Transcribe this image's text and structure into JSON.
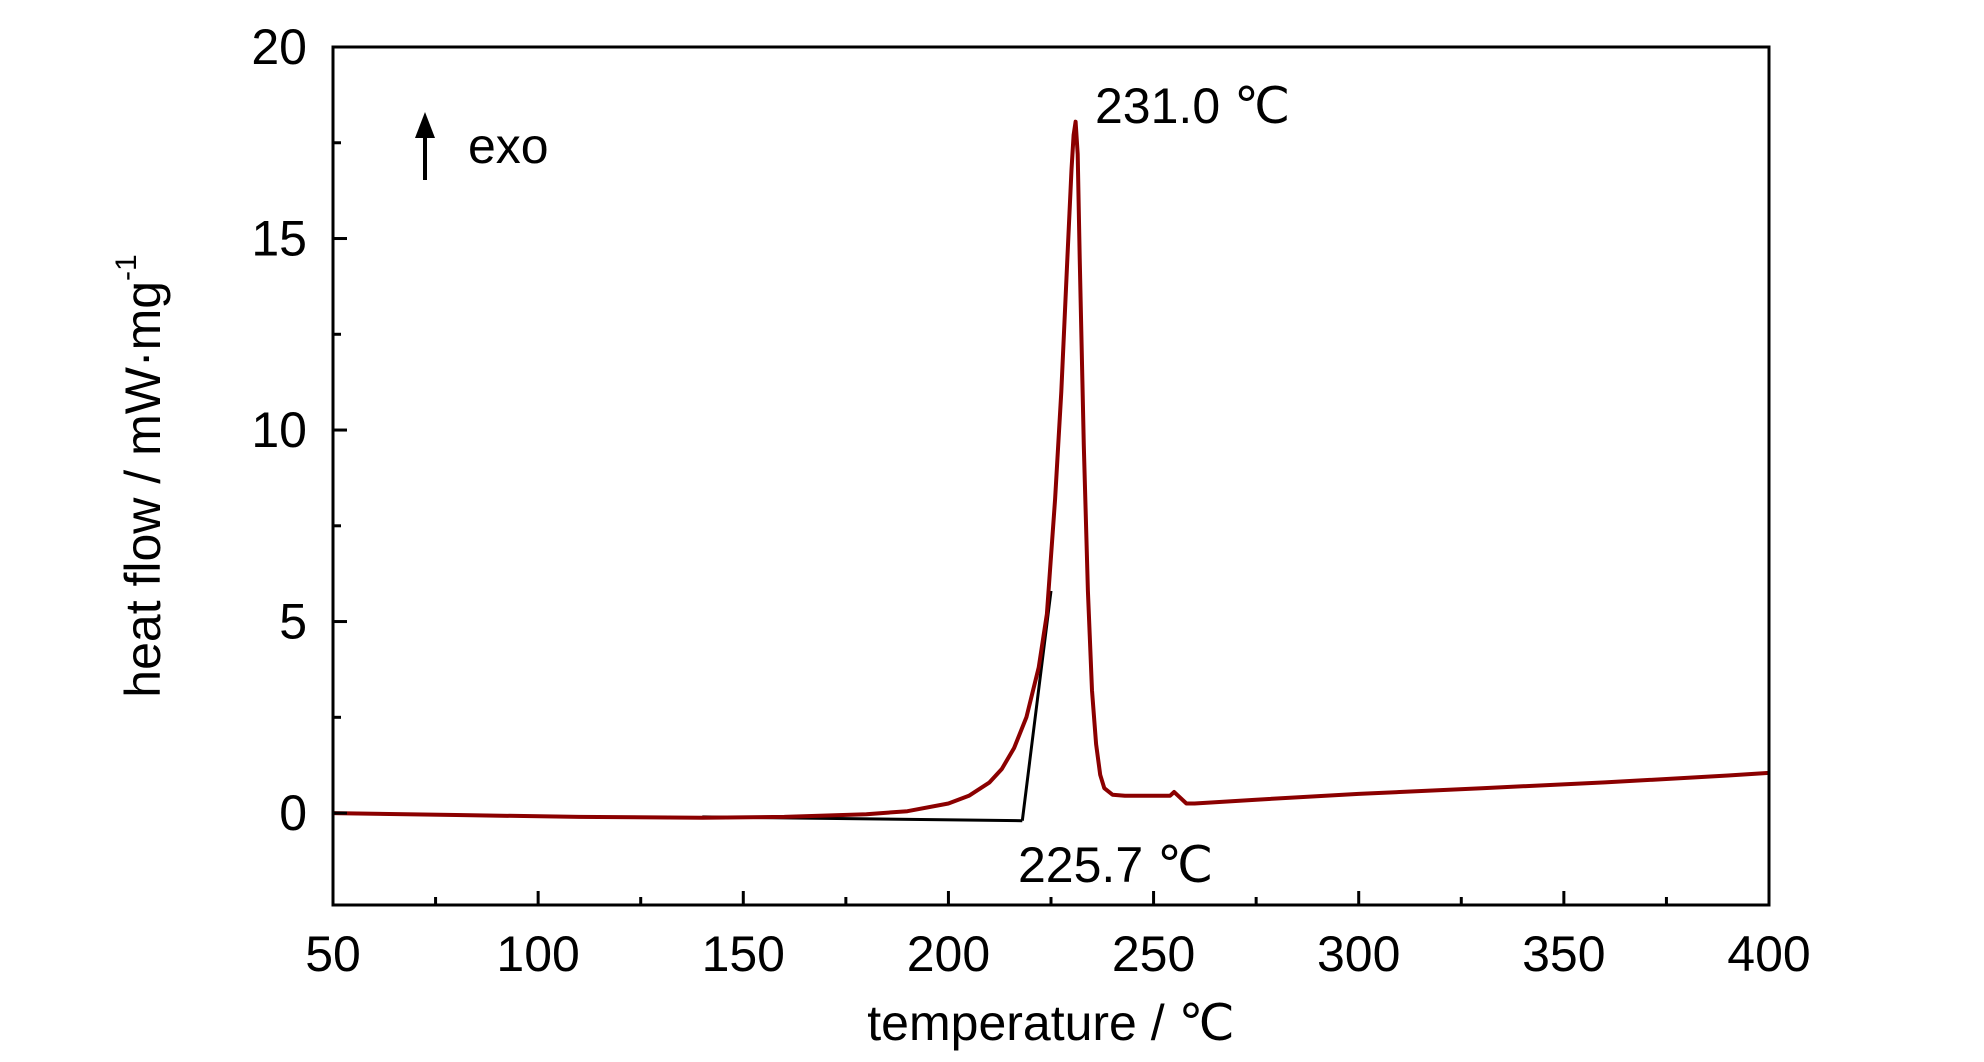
{
  "chart_data": {
    "type": "line",
    "title": "",
    "xlabel": "temperature / ℃",
    "ylabel_main": "heat flow / mW·mg",
    "ylabel_sup": "-1",
    "xlim": [
      50,
      400
    ],
    "ylim": [
      -2.4,
      20
    ],
    "x_ticks": [
      50,
      100,
      150,
      200,
      250,
      300,
      350,
      400
    ],
    "y_ticks": [
      0,
      5,
      10,
      15,
      20
    ],
    "x_tick_labels": [
      "50",
      "100",
      "150",
      "200",
      "250",
      "300",
      "350",
      "400"
    ],
    "y_tick_labels": [
      "0",
      "5",
      "10",
      "15",
      "20"
    ],
    "grid": false,
    "series": [
      {
        "color": "#8b0000",
        "x": [
          50,
          80,
          110,
          140,
          160,
          180,
          190,
          200,
          205,
          210,
          213,
          216,
          219,
          222,
          224,
          226,
          227.5,
          229,
          230,
          230.5,
          231,
          231.5,
          232,
          233,
          234,
          235,
          236,
          237,
          238,
          240,
          243,
          250,
          254,
          255,
          256,
          258,
          260,
          265,
          275,
          300,
          330,
          360,
          390,
          400
        ],
        "y": [
          0.0,
          -0.05,
          -0.1,
          -0.12,
          -0.1,
          -0.03,
          0.05,
          0.25,
          0.45,
          0.8,
          1.15,
          1.7,
          2.5,
          3.8,
          5.2,
          8.2,
          11.0,
          14.5,
          16.8,
          17.7,
          18.05,
          17.2,
          14.5,
          9.6,
          5.8,
          3.2,
          1.8,
          1.0,
          0.65,
          0.48,
          0.45,
          0.45,
          0.45,
          0.55,
          0.45,
          0.25,
          0.25,
          0.28,
          0.35,
          0.5,
          0.65,
          0.8,
          0.98,
          1.05
        ]
      }
    ],
    "onset_tangent": {
      "color": "#000000",
      "baseline": [
        [
          140,
          -0.1
        ],
        [
          218,
          -0.2
        ]
      ],
      "tangent": [
        [
          218,
          -0.2
        ],
        [
          225,
          5.8
        ]
      ]
    },
    "annotations": {
      "peak_label": "231.0 ℃",
      "peak_x": 231.0,
      "onset_label": "225.7 ℃",
      "onset_x": 225.7,
      "direction_label": "exo"
    }
  }
}
